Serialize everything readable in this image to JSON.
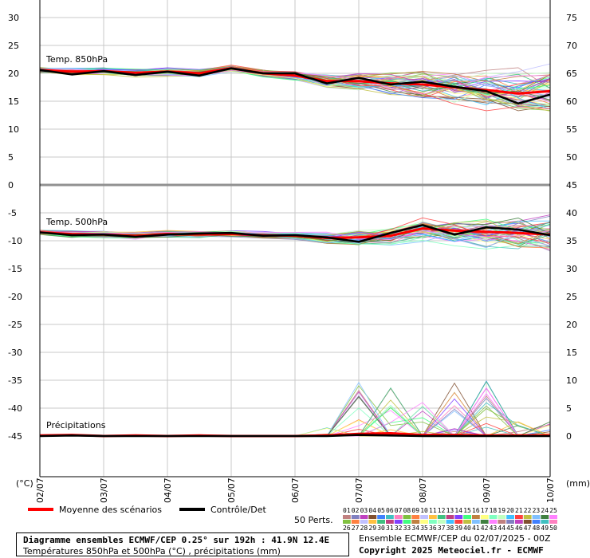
{
  "chart_data": {
    "type": "line",
    "title": "Diagramme ensembles ECMWF/CEP 0.25° sur 192h : 41.9N 12.4E",
    "subtitle": "Températures 850hPa et 500hPa (°C) , précipitations (mm)",
    "run_info": "Ensemble ECMWF/CEP du 02/07/2025 - 00Z",
    "copyright": "Copyright 2025 Meteociel.fr - ECMWF",
    "left_unit_label": "(°C)",
    "right_unit_label": "(mm)",
    "x_ticks": [
      "02/07",
      "03/07",
      "04/07",
      "05/07",
      "06/07",
      "07/07",
      "08/07",
      "09/07",
      "10/07"
    ],
    "x_range_hours": [
      0,
      192
    ],
    "left_axis": {
      "ticks": [
        30,
        25,
        20,
        15,
        10,
        5,
        0,
        -5,
        -10,
        -15,
        -20,
        -25,
        -30,
        -35,
        -40,
        -45
      ]
    },
    "right_axis": {
      "ticks": [
        75,
        70,
        65,
        60,
        55,
        50,
        45,
        40,
        35,
        30,
        25,
        20,
        15,
        10,
        5,
        0
      ]
    },
    "panels": [
      {
        "label": "Temp. 850hPa",
        "ylim": [
          0,
          30
        ],
        "series": [
          {
            "name": "Moyenne des scénarios",
            "x": [
              0,
              12,
              24,
              36,
              48,
              60,
              72,
              84,
              96,
              108,
              120,
              132,
              144,
              156,
              168,
              180,
              192
            ],
            "y": [
              20.6,
              20.3,
              20.4,
              20.1,
              20.3,
              20.0,
              20.9,
              20.0,
              19.6,
              18.6,
              18.6,
              18.2,
              18.0,
              17.5,
              17.0,
              16.4,
              16.8
            ]
          },
          {
            "name": "Contrôle/Det",
            "x": [
              0,
              12,
              24,
              36,
              48,
              60,
              72,
              84,
              96,
              108,
              120,
              132,
              144,
              156,
              168,
              180,
              192
            ],
            "y": [
              20.6,
              19.8,
              20.4,
              19.7,
              20.3,
              19.6,
              20.9,
              20.0,
              20.0,
              18.2,
              19.2,
              18.0,
              18.5,
              17.6,
              16.8,
              14.6,
              16.2
            ]
          }
        ]
      },
      {
        "label": "Temp. 500hPa",
        "ylim": [
          -45,
          0
        ],
        "series": [
          {
            "name": "Moyenne des scénarios",
            "x": [
              0,
              12,
              24,
              36,
              48,
              60,
              72,
              84,
              96,
              108,
              120,
              132,
              144,
              156,
              168,
              180,
              192
            ],
            "y": [
              -8.5,
              -8.8,
              -8.9,
              -9.1,
              -8.8,
              -8.9,
              -8.8,
              -9.0,
              -9.1,
              -9.5,
              -9.4,
              -9.1,
              -7.8,
              -8.2,
              -8.4,
              -8.6,
              -8.9
            ]
          },
          {
            "name": "Contrôle/Det",
            "x": [
              0,
              12,
              24,
              36,
              48,
              60,
              72,
              84,
              96,
              108,
              120,
              132,
              144,
              156,
              168,
              180,
              192
            ],
            "y": [
              -8.5,
              -9.0,
              -8.9,
              -9.3,
              -8.9,
              -8.7,
              -8.6,
              -9.1,
              -9.0,
              -9.4,
              -10.2,
              -8.6,
              -7.2,
              -8.9,
              -7.6,
              -8.0,
              -9.0
            ]
          }
        ]
      },
      {
        "label": "Précipitations",
        "ylim": [
          0,
          12
        ],
        "series": [
          {
            "name": "Moyenne des scénarios",
            "x": [
              0,
              12,
              24,
              36,
              48,
              60,
              72,
              84,
              96,
              108,
              120,
              132,
              144,
              156,
              168,
              180,
              192
            ],
            "y": [
              0.1,
              0.2,
              0.0,
              0.1,
              0.0,
              0.1,
              0.0,
              0.0,
              0.0,
              0.1,
              0.4,
              0.5,
              0.2,
              0.2,
              0.1,
              0.1,
              0.1
            ]
          },
          {
            "name": "Contrôle/Det",
            "x": [
              0,
              12,
              24,
              36,
              48,
              60,
              72,
              84,
              96,
              108,
              120,
              132,
              144,
              156,
              168,
              180,
              192
            ],
            "y": [
              0.0,
              0.1,
              0.0,
              0.0,
              0.0,
              0.0,
              0.0,
              0.0,
              0.0,
              0.0,
              0.2,
              0.1,
              0.0,
              0.0,
              0.0,
              0.0,
              0.0
            ]
          }
        ]
      }
    ],
    "legend": {
      "mean_label": "Moyenne des scénarios",
      "control_label": "Contrôle/Det",
      "perts_label": "50 Perts.",
      "mean_color": "#ff0000",
      "control_color": "#000000",
      "members_row1": [
        "01",
        "02",
        "03",
        "04",
        "05",
        "06",
        "07",
        "08",
        "09",
        "10",
        "11",
        "12",
        "13",
        "14",
        "15",
        "16",
        "17",
        "18",
        "19",
        "20",
        "21",
        "22",
        "23",
        "24",
        "25"
      ],
      "members_row2": [
        "26",
        "27",
        "28",
        "29",
        "30",
        "31",
        "32",
        "33",
        "34",
        "35",
        "36",
        "37",
        "38",
        "39",
        "40",
        "41",
        "42",
        "43",
        "44",
        "45",
        "46",
        "47",
        "48",
        "49",
        "50"
      ],
      "member_colors": [
        "#c08080",
        "#8080c0",
        "#c040c0",
        "#805030",
        "#4080ff",
        "#40c0c0",
        "#ff80c0",
        "#80c040",
        "#ff8040",
        "#c0c0ff",
        "#ffc040",
        "#40c080",
        "#c04080",
        "#8040ff",
        "#40ff80",
        "#c08040",
        "#ffff80",
        "#80ffc0",
        "#c0ffc0",
        "#40c0ff",
        "#ff4040",
        "#c0c040",
        "#80c0ff",
        "#408040",
        "#ff80ff"
      ]
    }
  }
}
